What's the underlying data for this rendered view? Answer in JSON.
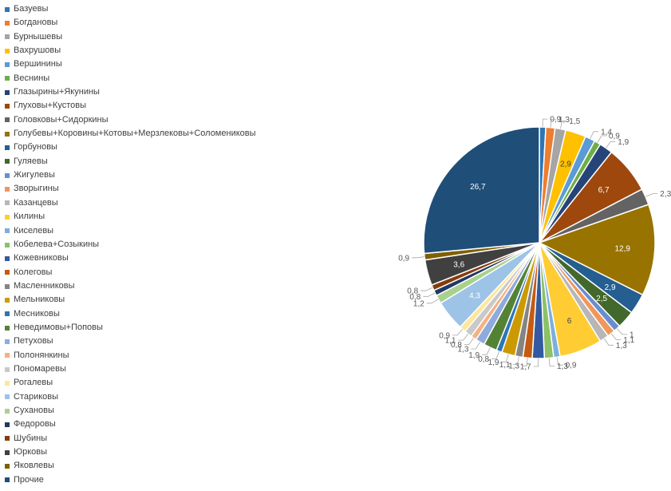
{
  "chart_data": {
    "type": "pie",
    "title": "",
    "legend_position": "left",
    "series": [
      {
        "name": "Базуевы",
        "value": 0.9,
        "label": "0,9",
        "color": "#2E75B6"
      },
      {
        "name": "Богдановы",
        "value": 1.3,
        "label": "1,3",
        "color": "#ED7D31"
      },
      {
        "name": "Бурнышевы",
        "value": 1.5,
        "label": "1,5",
        "color": "#A5A5A5"
      },
      {
        "name": "Вахрушовы",
        "value": 2.9,
        "label": "2,9",
        "color": "#FFC000"
      },
      {
        "name": "Вершинины",
        "value": 1.4,
        "label": "1,4",
        "color": "#5B9BD5"
      },
      {
        "name": "Веснины",
        "value": 0.9,
        "label": "0,9",
        "color": "#70AD47"
      },
      {
        "name": "Глазырины+Якунины",
        "value": 1.9,
        "label": "1,9",
        "color": "#264478"
      },
      {
        "name": "Глуховы+Кустовы",
        "value": 6.7,
        "label": "6,7",
        "color": "#9E480E"
      },
      {
        "name": "Головковы+Сидоркины",
        "value": 2.3,
        "label": "2,3",
        "color": "#636363"
      },
      {
        "name": "Голубевы+Коровины+Котовы+Мерзлековы+Соломениковы",
        "value": 12.9,
        "label": "12,9",
        "color": "#997300"
      },
      {
        "name": "Горбуновы",
        "value": 2.9,
        "label": "2,9",
        "color": "#255E91"
      },
      {
        "name": "Гуляевы",
        "value": 2.5,
        "label": "2,5",
        "color": "#43682B"
      },
      {
        "name": "Жигулевы",
        "value": 1.0,
        "label": "1",
        "color": "#698ED0"
      },
      {
        "name": "Зворыгины",
        "value": 1.1,
        "label": "1,1",
        "color": "#F1975A"
      },
      {
        "name": "Казанцевы",
        "value": 1.3,
        "label": "1,3",
        "color": "#B7B7B7"
      },
      {
        "name": "Килины",
        "value": 6.0,
        "label": "6",
        "color": "#FFCD33"
      },
      {
        "name": "Киселевы",
        "value": 0.9,
        "label": "0,9",
        "color": "#7CAFDD"
      },
      {
        "name": "Кобелева+Созыкины",
        "value": 1.3,
        "label": "1,3",
        "color": "#8CC168"
      },
      {
        "name": "Кожевниковы",
        "value": 1.7,
        "label": "1,7",
        "color": "#335AA1"
      },
      {
        "name": "Колеговы",
        "value": 1.3,
        "label": "1,3",
        "color": "#C55A11"
      },
      {
        "name": "Масленниковы",
        "value": 1.1,
        "label": "1,1",
        "color": "#848484"
      },
      {
        "name": "Мельниковы",
        "value": 1.9,
        "label": "1,9",
        "color": "#CC9A00"
      },
      {
        "name": "Месниковы",
        "value": 0.8,
        "label": "0,8",
        "color": "#2E75B6"
      },
      {
        "name": "Неведимовы+Поповы",
        "value": 1.9,
        "label": "1,9",
        "color": "#548235"
      },
      {
        "name": "Петуховы",
        "value": 1.3,
        "label": "1,3",
        "color": "#8FAADC"
      },
      {
        "name": "Полонянкины",
        "value": 0.8,
        "label": "0,8",
        "color": "#F4B183"
      },
      {
        "name": "Пономаревы",
        "value": 1.1,
        "label": "1,1",
        "color": "#C9C9C9"
      },
      {
        "name": "Рогалевы",
        "value": 0.9,
        "label": "0,9",
        "color": "#FFE699"
      },
      {
        "name": "Стариковы",
        "value": 4.3,
        "label": "4,3",
        "color": "#9DC3E6"
      },
      {
        "name": "Сухановы",
        "value": 1.2,
        "label": "1,2",
        "color": "#A9D18E"
      },
      {
        "name": "Федоровы",
        "value": 0.8,
        "label": "0,8",
        "color": "#203864"
      },
      {
        "name": "Шубины",
        "value": 0.8,
        "label": "0,8",
        "color": "#843C0C"
      },
      {
        "name": "Юрковы",
        "value": 3.6,
        "label": "3,6",
        "color": "#404040"
      },
      {
        "name": "Яковлевы",
        "value": 0.9,
        "label": "0,9",
        "color": "#7F6000"
      },
      {
        "name": "Прочие",
        "value": 26.7,
        "label": "26,7",
        "color": "#1F4E79"
      }
    ]
  }
}
